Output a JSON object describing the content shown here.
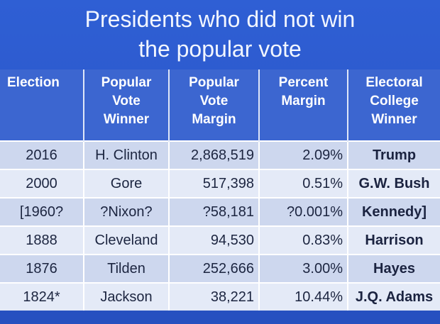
{
  "slide": {
    "title_line1": "Presidents who did not win",
    "title_line2": "the popular vote"
  },
  "table": {
    "headers": {
      "election": [
        "Election"
      ],
      "popular_winner": [
        "Popular",
        "Vote",
        "Winner"
      ],
      "popular_margin": [
        "Popular",
        "Vote",
        "Margin"
      ],
      "percent_margin": [
        "Percent",
        "Margin"
      ],
      "electoral_winner": [
        "Electoral",
        "College",
        "Winner"
      ]
    },
    "rows": [
      {
        "election": "2016",
        "popular_winner": "H. Clinton",
        "popular_margin": "2,868,519",
        "percent_margin": "2.09%",
        "electoral_winner": "Trump"
      },
      {
        "election": "2000",
        "popular_winner": "Gore",
        "popular_margin": "517,398",
        "percent_margin": "0.51%",
        "electoral_winner": "G.W. Bush"
      },
      {
        "election": "[1960?",
        "popular_winner": "?Nixon?",
        "popular_margin": "?58,181",
        "percent_margin": "?0.001%",
        "electoral_winner": "Kennedy]"
      },
      {
        "election": "1888",
        "popular_winner": "Cleveland",
        "popular_margin": "94,530",
        "percent_margin": "0.83%",
        "electoral_winner": "Harrison"
      },
      {
        "election": "1876",
        "popular_winner": "Tilden",
        "popular_margin": "252,666",
        "percent_margin": "3.00%",
        "electoral_winner": "Hayes"
      },
      {
        "election": "1824*",
        "popular_winner": "Jackson",
        "popular_margin": "38,221",
        "percent_margin": "10.44%",
        "electoral_winner": "J.Q. Adams"
      }
    ]
  },
  "colors": {
    "background": "#2a56c9",
    "header_row": "#3c66d0",
    "row_dark": "#cdd7ee",
    "row_light": "#e4eaf7"
  }
}
